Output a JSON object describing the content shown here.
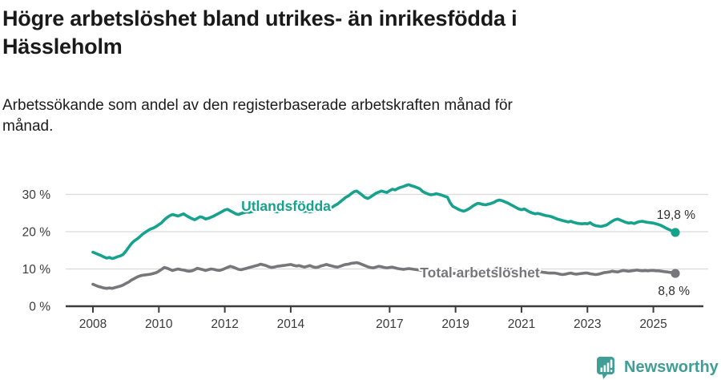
{
  "header": {
    "title_lines": [
      "Högre arbetslöshet bland utrikes- än inrikesfödda i",
      "Hässleholm"
    ],
    "subtitle_lines": [
      "Arbetssökande som andel av den registerbaserade arbetskraften månad för",
      "månad."
    ]
  },
  "chart_data": {
    "type": "line",
    "title": "Högre arbetslöshet bland utrikes- än inrikesfödda i Hässleholm",
    "subtitle": "Arbetssökande som andel av den registerbaserade arbetskraften månad för månad.",
    "x_unit": "month",
    "x_start": "2008-01",
    "x_end": "2025-09",
    "ylim": [
      0,
      34
    ],
    "grid": "horizontal",
    "x_ticks": [
      {
        "m": 0,
        "label": "2008"
      },
      {
        "m": 24,
        "label": "2010"
      },
      {
        "m": 48,
        "label": "2012"
      },
      {
        "m": 72,
        "label": "2014"
      },
      {
        "m": 108,
        "label": "2017"
      },
      {
        "m": 132,
        "label": "2019"
      },
      {
        "m": 156,
        "label": "2021"
      },
      {
        "m": 180,
        "label": "2023"
      },
      {
        "m": 204,
        "label": "2025"
      }
    ],
    "y_ticks": [
      {
        "value": 0,
        "label": "0 %"
      },
      {
        "value": 10,
        "label": "10 %"
      },
      {
        "value": 20,
        "label": "20 %"
      },
      {
        "value": 30,
        "label": "30 %"
      }
    ],
    "series": [
      {
        "name": "Utlandsfödda",
        "color": "#16a28d",
        "end_label": "19,8 %",
        "values": [
          14.5,
          14.2,
          13.9,
          13.6,
          13.2,
          12.9,
          13.1,
          12.8,
          13.0,
          13.3,
          13.5,
          13.9,
          14.8,
          15.8,
          16.8,
          17.5,
          18.0,
          18.6,
          19.3,
          19.8,
          20.3,
          20.7,
          21.0,
          21.4,
          21.9,
          22.4,
          23.2,
          23.8,
          24.3,
          24.6,
          24.4,
          24.2,
          24.5,
          24.8,
          24.3,
          23.9,
          23.5,
          23.2,
          23.6,
          24.0,
          23.8,
          23.4,
          23.6,
          23.9,
          24.2,
          24.6,
          25.0,
          25.4,
          25.8,
          26.0,
          25.6,
          25.2,
          24.8,
          24.6,
          24.9,
          25.1,
          25.3,
          25.2,
          25.4,
          25.6,
          25.7,
          25.9,
          26.1,
          26.3,
          26.0,
          25.7,
          25.5,
          25.3,
          25.6,
          25.8,
          26.0,
          25.9,
          25.7,
          26.0,
          26.2,
          25.9,
          25.6,
          25.4,
          25.6,
          25.3,
          25.5,
          25.7,
          25.6,
          25.8,
          26.0,
          26.3,
          26.2,
          26.5,
          27.0,
          27.4,
          28.0,
          28.6,
          29.2,
          29.6,
          30.2,
          30.7,
          30.9,
          30.4,
          29.8,
          29.2,
          28.9,
          29.3,
          29.8,
          30.3,
          30.6,
          30.9,
          30.7,
          30.5,
          31.0,
          31.4,
          31.2,
          31.6,
          31.9,
          32.1,
          32.4,
          32.6,
          32.3,
          32.1,
          31.8,
          31.5,
          30.8,
          30.4,
          30.1,
          29.9,
          30.0,
          30.2,
          30.0,
          29.8,
          29.5,
          29.3,
          27.8,
          26.8,
          26.4,
          26.0,
          25.7,
          25.5,
          25.8,
          26.2,
          26.7,
          27.2,
          27.6,
          27.5,
          27.3,
          27.2,
          27.4,
          27.6,
          27.9,
          28.3,
          28.5,
          28.3,
          28.0,
          27.7,
          27.3,
          26.9,
          26.5,
          26.1,
          25.9,
          26.1,
          25.7,
          25.3,
          25.0,
          24.8,
          24.9,
          24.7,
          24.5,
          24.3,
          24.2,
          24.0,
          23.7,
          23.4,
          23.2,
          23.0,
          22.8,
          22.6,
          22.8,
          22.5,
          22.3,
          22.2,
          22.1,
          22.2,
          22.1,
          22.4,
          21.9,
          21.6,
          21.5,
          21.4,
          21.6,
          21.8,
          22.3,
          22.8,
          23.2,
          23.4,
          23.1,
          22.8,
          22.5,
          22.3,
          22.4,
          22.2,
          22.5,
          22.7,
          22.8,
          22.6,
          22.5,
          22.4,
          22.3,
          22.1,
          21.9,
          21.6,
          21.2,
          20.8,
          20.5,
          20.1,
          19.8
        ]
      },
      {
        "name": "Total arbetslöshet",
        "color": "#76767b",
        "end_label": "8,8 %",
        "values": [
          5.9,
          5.6,
          5.3,
          5.1,
          4.9,
          4.8,
          4.9,
          4.8,
          5.0,
          5.2,
          5.4,
          5.7,
          6.1,
          6.5,
          7.0,
          7.4,
          7.8,
          8.1,
          8.3,
          8.4,
          8.5,
          8.6,
          8.8,
          9.0,
          9.4,
          9.9,
          10.4,
          10.2,
          9.9,
          9.6,
          9.8,
          10.0,
          9.8,
          9.7,
          9.5,
          9.4,
          9.5,
          9.8,
          10.2,
          10.0,
          9.8,
          9.6,
          9.8,
          10.0,
          9.9,
          9.7,
          9.6,
          9.8,
          10.1,
          10.4,
          10.7,
          10.5,
          10.2,
          9.9,
          9.8,
          10.0,
          10.2,
          10.4,
          10.6,
          10.8,
          11.0,
          11.3,
          11.1,
          10.9,
          10.6,
          10.4,
          10.5,
          10.7,
          10.8,
          10.9,
          11.0,
          11.1,
          11.2,
          11.0,
          10.8,
          10.9,
          10.7,
          10.5,
          10.7,
          10.9,
          10.6,
          10.4,
          10.5,
          10.8,
          11.0,
          11.2,
          11.0,
          10.8,
          10.6,
          10.5,
          10.7,
          11.0,
          11.2,
          11.3,
          11.5,
          11.6,
          11.7,
          11.5,
          11.2,
          10.9,
          10.6,
          10.4,
          10.3,
          10.5,
          10.7,
          10.6,
          10.4,
          10.3,
          10.4,
          10.5,
          10.3,
          10.1,
          10.0,
          9.9,
          10.0,
          10.1,
          10.0,
          9.9,
          9.8,
          9.7,
          9.6,
          9.5,
          9.4,
          9.3,
          9.2,
          9.1,
          9.2,
          9.1,
          9.0,
          8.9,
          8.8,
          8.8,
          8.8,
          8.7,
          8.7,
          8.6,
          8.7,
          8.8,
          8.9,
          9.0,
          9.1,
          9.0,
          9.0,
          9.1,
          9.3,
          9.5,
          9.8,
          10.2,
          10.4,
          10.3,
          10.2,
          10.0,
          9.9,
          9.8,
          9.7,
          9.6,
          9.6,
          9.7,
          9.5,
          9.4,
          9.3,
          9.2,
          9.3,
          9.2,
          9.1,
          9.0,
          8.9,
          8.9,
          8.9,
          8.8,
          8.6,
          8.5,
          8.6,
          8.8,
          8.9,
          8.7,
          8.6,
          8.7,
          8.8,
          8.9,
          8.9,
          8.7,
          8.6,
          8.5,
          8.6,
          8.8,
          9.0,
          9.1,
          9.2,
          9.4,
          9.3,
          9.2,
          9.4,
          9.6,
          9.5,
          9.4,
          9.5,
          9.6,
          9.7,
          9.6,
          9.5,
          9.6,
          9.5,
          9.6,
          9.6,
          9.5,
          9.5,
          9.4,
          9.3,
          9.2,
          9.1,
          9.0,
          8.8
        ]
      }
    ]
  },
  "footer": {
    "brand": "Newsworthy",
    "brand_color": "#3f9e96"
  }
}
